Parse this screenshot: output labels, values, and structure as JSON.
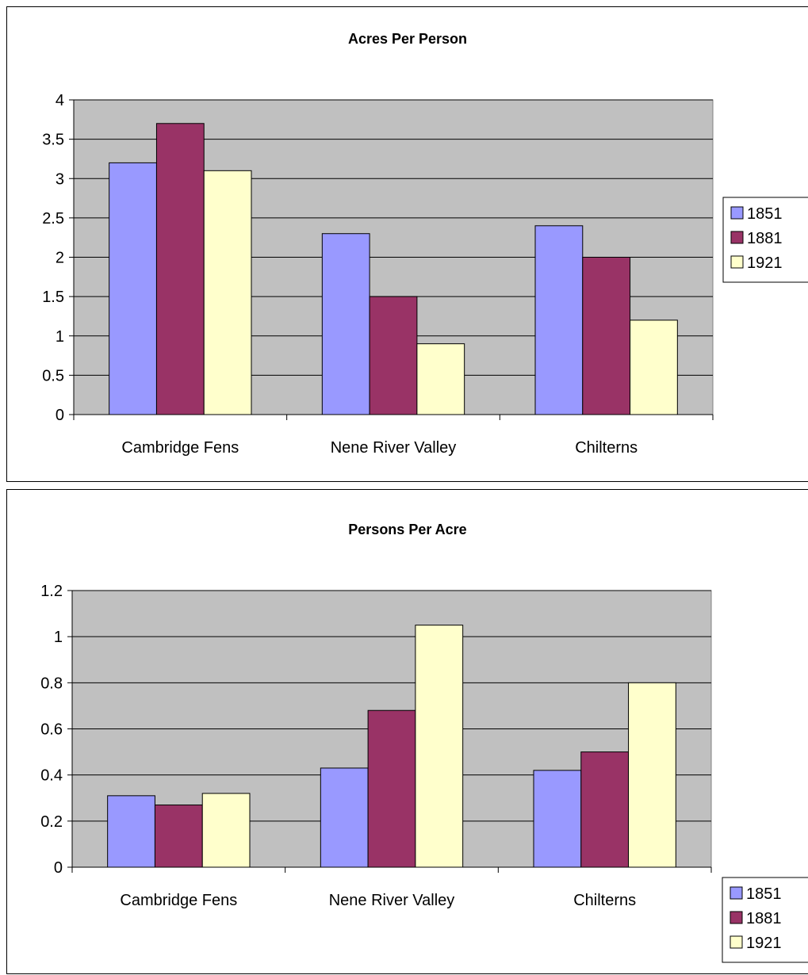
{
  "chart_data": [
    {
      "type": "bar",
      "title": "Acres Per Person",
      "xlabel": "",
      "ylabel": "",
      "categories": [
        "Cambridge Fens",
        "Nene River Valley",
        "Chilterns"
      ],
      "series": [
        {
          "name": "1851",
          "color": "#9999ff",
          "values": [
            3.2,
            2.3,
            2.4
          ]
        },
        {
          "name": "1881",
          "color": "#993366",
          "values": [
            3.7,
            1.5,
            2.0
          ]
        },
        {
          "name": "1921",
          "color": "#ffffcc",
          "values": [
            3.1,
            0.9,
            1.2
          ]
        }
      ],
      "ylim": [
        0,
        4
      ],
      "yticks": [
        "0",
        "0.5",
        "1",
        "1.5",
        "2",
        "2.5",
        "3",
        "3.5",
        "4"
      ],
      "grid": true,
      "plot_background": "#c0c0c0",
      "legend_position": "right"
    },
    {
      "type": "bar",
      "title": "Persons Per Acre",
      "xlabel": "",
      "ylabel": "",
      "categories": [
        "Cambridge Fens",
        "Nene River Valley",
        "Chilterns"
      ],
      "series": [
        {
          "name": "1851",
          "color": "#9999ff",
          "values": [
            0.31,
            0.43,
            0.42
          ]
        },
        {
          "name": "1881",
          "color": "#993366",
          "values": [
            0.27,
            0.68,
            0.5
          ]
        },
        {
          "name": "1921",
          "color": "#ffffcc",
          "values": [
            0.32,
            1.05,
            0.8
          ]
        }
      ],
      "ylim": [
        0,
        1.2
      ],
      "yticks": [
        "0",
        "0.2",
        "0.4",
        "0.6",
        "0.8",
        "1",
        "1.2"
      ],
      "grid": true,
      "plot_background": "#c0c0c0",
      "legend_position": "right"
    }
  ]
}
